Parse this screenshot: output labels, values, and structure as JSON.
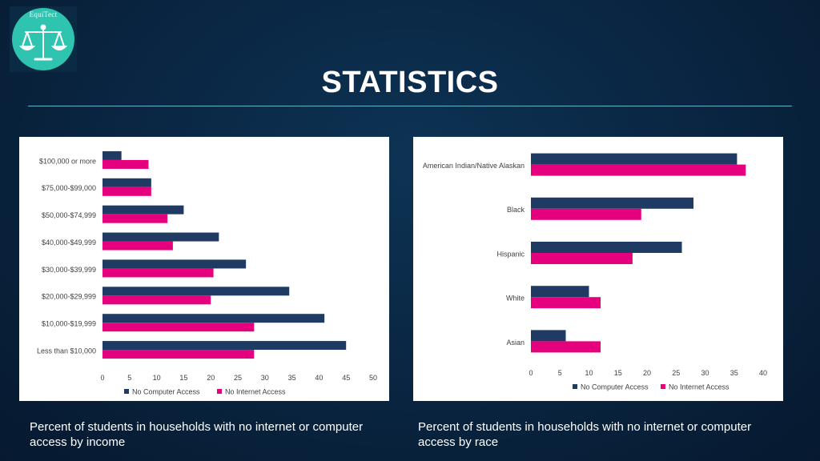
{
  "logo": {
    "text": "EquiTect"
  },
  "slide": {
    "title": "STATISTICS"
  },
  "colors": {
    "navy": "#1f3b63",
    "magenta": "#e5007d",
    "accent_line": "#5fb3c9"
  },
  "captions": {
    "left": "Percent of students in households with no internet or computer access by income",
    "right": "Percent of students in households with no internet or computer access by race"
  },
  "chart_data": [
    {
      "type": "bar",
      "orientation": "horizontal",
      "categories": [
        "$100,000 or more",
        "$75,000-$99,000",
        "$50,000-$74,999",
        "$40,000-$49,999",
        "$30,000-$39,999",
        "$20,000-$29,999",
        "$10,000-$19,999",
        "Less than $10,000"
      ],
      "series": [
        {
          "name": "No Computer Access",
          "color": "#1f3b63",
          "values": [
            3.5,
            9,
            15,
            21.5,
            26.5,
            34.5,
            41,
            45
          ]
        },
        {
          "name": "No Internet Access",
          "color": "#e5007d",
          "values": [
            8.5,
            9,
            12,
            13,
            20.5,
            20,
            28,
            28
          ]
        }
      ],
      "xlim": [
        0,
        50
      ],
      "xticks": [
        "0",
        "5",
        "10",
        "15",
        "20",
        "25",
        "30",
        "35",
        "40",
        "45",
        "50"
      ],
      "legend": "bottom",
      "grid": false
    },
    {
      "type": "bar",
      "orientation": "horizontal",
      "categories": [
        "American Indian/Native Alaskan",
        "Black",
        "Hispanic",
        "White",
        "Asian"
      ],
      "series": [
        {
          "name": "No Computer Access",
          "color": "#1f3b63",
          "values": [
            35.5,
            28,
            26,
            10,
            6
          ]
        },
        {
          "name": "No Internet Access",
          "color": "#e5007d",
          "values": [
            37,
            19,
            17.5,
            12,
            12
          ]
        }
      ],
      "xlim": [
        0,
        40
      ],
      "xticks": [
        "0",
        "5",
        "10",
        "15",
        "20",
        "25",
        "30",
        "35",
        "40"
      ],
      "legend": "bottom",
      "grid": false
    }
  ]
}
